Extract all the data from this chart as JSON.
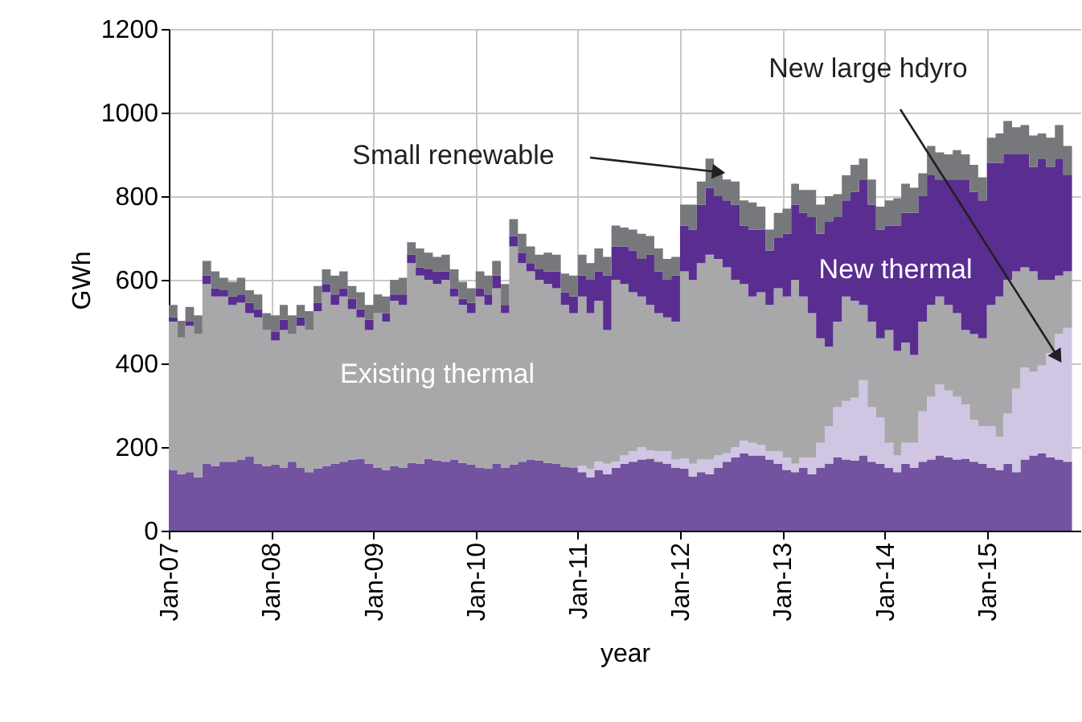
{
  "chart_data": {
    "type": "area",
    "stacked": true,
    "line_style": "step",
    "xlabel": "year",
    "ylabel": "GWh",
    "grid": true,
    "x": [
      "2007-01",
      "2007-02",
      "2007-03",
      "2007-04",
      "2007-05",
      "2007-06",
      "2007-07",
      "2007-08",
      "2007-09",
      "2007-10",
      "2007-11",
      "2007-12",
      "2008-01",
      "2008-02",
      "2008-03",
      "2008-04",
      "2008-05",
      "2008-06",
      "2008-07",
      "2008-08",
      "2008-09",
      "2008-10",
      "2008-11",
      "2008-12",
      "2009-01",
      "2009-02",
      "2009-03",
      "2009-04",
      "2009-05",
      "2009-06",
      "2009-07",
      "2009-08",
      "2009-09",
      "2009-10",
      "2009-11",
      "2009-12",
      "2010-01",
      "2010-02",
      "2010-03",
      "2010-04",
      "2010-05",
      "2010-06",
      "2010-07",
      "2010-08",
      "2010-09",
      "2010-10",
      "2010-11",
      "2010-12",
      "2011-01",
      "2011-02",
      "2011-03",
      "2011-04",
      "2011-05",
      "2011-06",
      "2011-07",
      "2011-08",
      "2011-09",
      "2011-10",
      "2011-11",
      "2011-12",
      "2012-01",
      "2012-02",
      "2012-03",
      "2012-04",
      "2012-05",
      "2012-06",
      "2012-07",
      "2012-08",
      "2012-09",
      "2012-10",
      "2012-11",
      "2012-12",
      "2013-01",
      "2013-02",
      "2013-03",
      "2013-04",
      "2013-05",
      "2013-06",
      "2013-07",
      "2013-08",
      "2013-09",
      "2013-10",
      "2013-11",
      "2013-12",
      "2014-01",
      "2014-02",
      "2014-03",
      "2014-04",
      "2014-05",
      "2014-06",
      "2014-07",
      "2014-08",
      "2014-09",
      "2014-10",
      "2014-11",
      "2014-12",
      "2015-01",
      "2015-02",
      "2015-03",
      "2015-04",
      "2015-05",
      "2015-06",
      "2015-07",
      "2015-08",
      "2015-09",
      "2015-10",
      "2015-11"
    ],
    "series": [
      {
        "color": "#7352a0",
        "values": [
          145,
          135,
          140,
          128,
          160,
          155,
          165,
          165,
          170,
          178,
          160,
          155,
          158,
          150,
          165,
          150,
          140,
          148,
          155,
          160,
          165,
          170,
          172,
          160,
          150,
          145,
          155,
          150,
          162,
          160,
          172,
          168,
          165,
          170,
          162,
          158,
          150,
          148,
          160,
          150,
          158,
          165,
          170,
          168,
          162,
          160,
          152,
          150,
          140,
          128,
          145,
          135,
          150,
          160,
          165,
          170,
          172,
          165,
          160,
          150,
          148,
          130,
          140,
          135,
          150,
          165,
          175,
          185,
          180,
          180,
          170,
          160,
          145,
          140,
          150,
          135,
          150,
          160,
          175,
          170,
          168,
          180,
          165,
          160,
          150,
          140,
          160,
          150,
          165,
          170,
          180,
          175,
          170,
          172,
          165,
          160,
          150,
          145,
          160,
          140,
          170,
          180,
          185,
          175,
          170,
          165,
          160
        ]
      },
      {
        "name": "New large hdyro",
        "color": "#d0c5e3",
        "values": [
          0,
          0,
          0,
          0,
          0,
          0,
          0,
          0,
          0,
          0,
          0,
          0,
          0,
          0,
          0,
          0,
          0,
          0,
          0,
          0,
          0,
          0,
          0,
          0,
          0,
          0,
          0,
          0,
          0,
          0,
          0,
          0,
          0,
          0,
          0,
          0,
          0,
          0,
          0,
          0,
          0,
          0,
          0,
          0,
          0,
          0,
          0,
          0,
          15,
          20,
          20,
          25,
          15,
          20,
          25,
          30,
          20,
          25,
          30,
          20,
          25,
          30,
          30,
          35,
          30,
          20,
          25,
          30,
          30,
          25,
          20,
          30,
          30,
          20,
          25,
          40,
          60,
          90,
          120,
          140,
          150,
          180,
          130,
          110,
          60,
          40,
          50,
          60,
          120,
          150,
          170,
          160,
          150,
          130,
          100,
          90,
          100,
          80,
          120,
          200,
          220,
          200,
          210,
          250,
          300,
          320,
          330
        ]
      },
      {
        "name": "Existing thermal",
        "color": "#a8a8ab",
        "values": [
          355,
          327,
          350,
          342,
          430,
          405,
          395,
          375,
          375,
          342,
          350,
          325,
          297,
          330,
          305,
          340,
          340,
          377,
          415,
          380,
          395,
          360,
          338,
          320,
          370,
          355,
          395,
          390,
          478,
          450,
          428,
          422,
          435,
          390,
          378,
          362,
          410,
          392,
          420,
          370,
          522,
          475,
          450,
          432,
          428,
          420,
          388,
          370,
          405,
          372,
          385,
          320,
          435,
          410,
          380,
          360,
          348,
          330,
          320,
          330,
          447,
          440,
          470,
          490,
          470,
          445,
          400,
          375,
          350,
          365,
          350,
          390,
          385,
          440,
          385,
          345,
          250,
          190,
          205,
          250,
          232,
          180,
          205,
          190,
          270,
          250,
          240,
          210,
          215,
          220,
          210,
          205,
          200,
          178,
          205,
          210,
          290,
          335,
          320,
          280,
          240,
          240,
          205,
          175,
          140,
          135,
          120
        ]
      },
      {
        "name": "New thermal",
        "color": "#5a2d91",
        "values": [
          10,
          0,
          10,
          0,
          20,
          20,
          15,
          20,
          20,
          25,
          20,
          0,
          20,
          25,
          0,
          20,
          0,
          20,
          20,
          25,
          20,
          25,
          20,
          25,
          0,
          20,
          15,
          25,
          20,
          20,
          25,
          30,
          20,
          20,
          15,
          25,
          20,
          25,
          30,
          20,
          25,
          25,
          20,
          25,
          30,
          40,
          30,
          40,
          50,
          80,
          70,
          130,
          80,
          90,
          100,
          90,
          120,
          100,
          90,
          110,
          110,
          120,
          140,
          160,
          150,
          160,
          180,
          140,
          160,
          150,
          130,
          120,
          150,
          180,
          200,
          230,
          250,
          300,
          250,
          230,
          260,
          300,
          280,
          260,
          250,
          300,
          310,
          340,
          300,
          310,
          280,
          300,
          320,
          360,
          340,
          330,
          340,
          320,
          300,
          280,
          270,
          250,
          290,
          270,
          280,
          230,
          250
        ]
      },
      {
        "name": "Small renewable",
        "color": "#77787b",
        "values": [
          30,
          40,
          35,
          45,
          35,
          40,
          30,
          35,
          40,
          30,
          35,
          40,
          40,
          35,
          45,
          30,
          45,
          40,
          35,
          45,
          40,
          30,
          40,
          35,
          45,
          40,
          35,
          40,
          30,
          45,
          40,
          35,
          40,
          45,
          40,
          35,
          40,
          45,
          35,
          50,
          40,
          45,
          40,
          35,
          45,
          40,
          45,
          50,
          50,
          40,
          55,
          45,
          50,
          45,
          50,
          60,
          45,
          55,
          50,
          45,
          50,
          60,
          55,
          70,
          60,
          50,
          55,
          60,
          65,
          55,
          50,
          60,
          60,
          50,
          55,
          65,
          70,
          60,
          55,
          60,
          65,
          50,
          60,
          55,
          60,
          65,
          70,
          60,
          55,
          70,
          65,
          60,
          70,
          60,
          65,
          55,
          60,
          70,
          80,
          65,
          70,
          75,
          60,
          70,
          80,
          70,
          65
        ]
      }
    ],
    "xlim": [
      "2007-01",
      "2015-12"
    ],
    "xticks": [
      {
        "value": "2007-01",
        "label": "Jan-07"
      },
      {
        "value": "2008-01",
        "label": "Jan-08"
      },
      {
        "value": "2009-01",
        "label": "Jan-09"
      },
      {
        "value": "2010-01",
        "label": "Jan-10"
      },
      {
        "value": "2011-01",
        "label": "Jan-11"
      },
      {
        "value": "2012-01",
        "label": "Jan-12"
      },
      {
        "value": "2013-01",
        "label": "Jan-13"
      },
      {
        "value": "2014-01",
        "label": "Jan-14"
      },
      {
        "value": "2015-01",
        "label": "Jan-15"
      }
    ],
    "ylim": [
      0,
      1200
    ],
    "yticks": [
      0,
      200,
      400,
      600,
      800,
      1000,
      1200
    ]
  }
}
